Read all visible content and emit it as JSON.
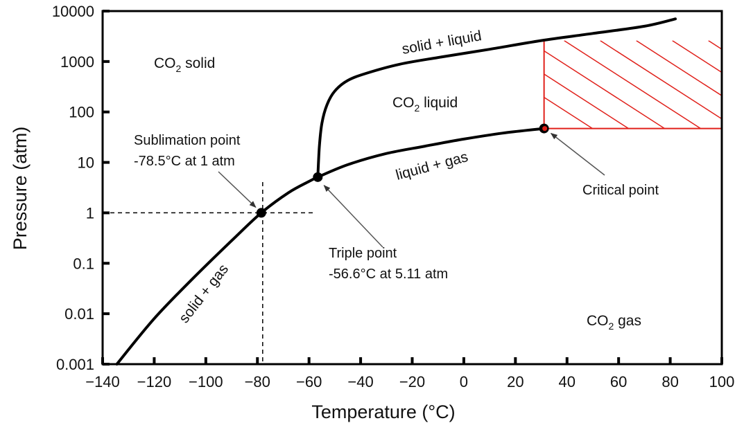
{
  "chart_data": {
    "type": "line",
    "title": "",
    "xlabel": "Temperature (°C)",
    "ylabel": "Pressure (atm)",
    "xlim": [
      -140,
      100
    ],
    "ylim": [
      0.001,
      10000
    ],
    "y_scale": "log",
    "grid": false,
    "x_ticks": [
      "-140",
      "-120",
      "-100",
      "-80",
      "-60",
      "-40",
      "-20",
      "0",
      "20",
      "40",
      "60",
      "80",
      "100"
    ],
    "y_ticks": [
      "0.001",
      "0.01",
      "0.1",
      "1",
      "10",
      "100",
      "1000",
      "10000"
    ],
    "series": [
      {
        "name": "solid + gas",
        "x": [
          -134.5,
          -120,
          -105,
          -90,
          -78.5,
          -68,
          -60,
          -56.6
        ],
        "y": [
          0.001,
          0.008,
          0.05,
          0.28,
          1,
          2.5,
          4.2,
          5.11
        ]
      },
      {
        "name": "liquid + gas",
        "x": [
          -56.6,
          -45,
          -30,
          -15,
          0,
          15,
          31.1
        ],
        "y": [
          5.11,
          9,
          15,
          21,
          29,
          38,
          47
        ]
      },
      {
        "name": "solid + liquid",
        "x": [
          -56.6,
          -56,
          -55,
          -53,
          -50,
          -45,
          -38,
          -25,
          -10,
          10,
          30,
          50,
          70,
          82
        ],
        "y": [
          5.11,
          20,
          60,
          140,
          260,
          420,
          580,
          880,
          1200,
          1750,
          2600,
          3600,
          5000,
          7000
        ]
      }
    ],
    "points": [
      {
        "name": "Sublimation point",
        "x": -78.5,
        "y": 1
      },
      {
        "name": "Triple point",
        "x": -56.6,
        "y": 5.11
      },
      {
        "name": "Critical point",
        "x": 31.1,
        "y": 47
      }
    ],
    "supercritical_region": {
      "x": [
        31.1,
        100
      ],
      "y": [
        47,
        2600
      ]
    },
    "regions": {
      "solid": "CO2 solid",
      "liquid": "CO2 liquid",
      "gas": "CO2 gas"
    },
    "boundary_labels": {
      "solid_liquid": "solid + liquid",
      "liquid_gas": "liquid + gas",
      "solid_gas": "solid + gas"
    },
    "annotations": {
      "sublimation_title": "Sublimation point",
      "sublimation_detail": "-78.5°C at 1 atm",
      "triple_title": "Triple point",
      "triple_detail": "-56.6°C at 5.11 atm",
      "critical_title": "Critical point"
    },
    "colors": {
      "curve": "#000000",
      "supercritical": "#e0201a"
    }
  }
}
